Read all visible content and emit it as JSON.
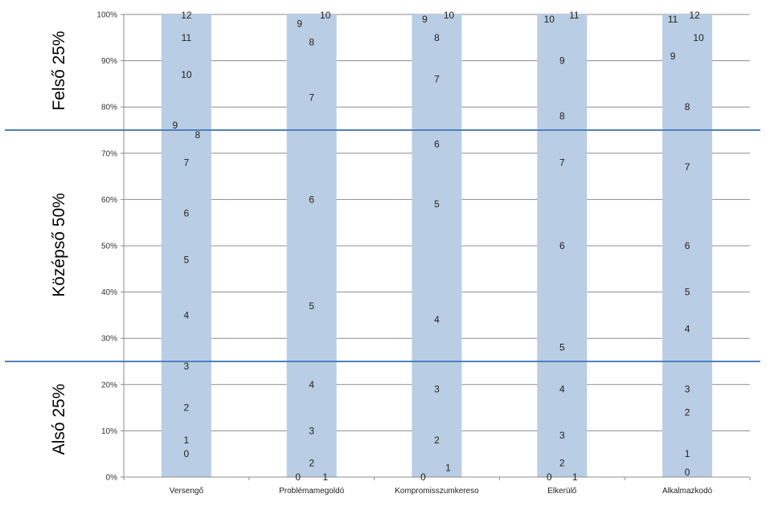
{
  "chart_data": {
    "type": "bar",
    "categories": [
      "Versengő",
      "Problémamegoldó",
      "Kompromisszumkereso",
      "Elkerülő",
      "Alkalmazkodó"
    ],
    "y_ticks": [
      "0%",
      "10%",
      "20%",
      "30%",
      "40%",
      "50%",
      "60%",
      "70%",
      "80%",
      "90%",
      "100%"
    ],
    "ylim": [
      0,
      100
    ],
    "grid": true,
    "bar_value": 100,
    "bar_color": "#b9cde4",
    "band_line_color": "#4f81bd",
    "band_lines": [
      75,
      25
    ],
    "bands": [
      {
        "label": "Felső 25%",
        "from": 75,
        "to": 100
      },
      {
        "label": "Középső 50%",
        "from": 25,
        "to": 75
      },
      {
        "label": "Alsó 25%",
        "from": 0,
        "to": 25
      }
    ],
    "score_labels": [
      [
        {
          "score": "0",
          "pct": 5
        },
        {
          "score": "1",
          "pct": 8
        },
        {
          "score": "2",
          "pct": 15
        },
        {
          "score": "3",
          "pct": 24
        },
        {
          "score": "4",
          "pct": 35
        },
        {
          "score": "5",
          "pct": 47
        },
        {
          "score": "6",
          "pct": 57
        },
        {
          "score": "7",
          "pct": 68
        },
        {
          "score": "8",
          "pct": 74
        },
        {
          "score": "9",
          "pct": 76
        },
        {
          "score": "10",
          "pct": 87
        },
        {
          "score": "11",
          "pct": 95
        },
        {
          "score": "12",
          "pct": 100
        }
      ],
      [
        {
          "score": "0",
          "pct": 0
        },
        {
          "score": "1",
          "pct": 0
        },
        {
          "score": "2",
          "pct": 3
        },
        {
          "score": "3",
          "pct": 10
        },
        {
          "score": "4",
          "pct": 20
        },
        {
          "score": "5",
          "pct": 37
        },
        {
          "score": "6",
          "pct": 60
        },
        {
          "score": "7",
          "pct": 82
        },
        {
          "score": "8",
          "pct": 94
        },
        {
          "score": "9",
          "pct": 98
        },
        {
          "score": "10",
          "pct": 100
        }
      ],
      [
        {
          "score": "0",
          "pct": 0
        },
        {
          "score": "1",
          "pct": 2
        },
        {
          "score": "2",
          "pct": 8
        },
        {
          "score": "3",
          "pct": 19
        },
        {
          "score": "4",
          "pct": 34
        },
        {
          "score": "5",
          "pct": 59
        },
        {
          "score": "6",
          "pct": 72
        },
        {
          "score": "7",
          "pct": 86
        },
        {
          "score": "8",
          "pct": 95
        },
        {
          "score": "9",
          "pct": 99
        },
        {
          "score": "10",
          "pct": 100
        }
      ],
      [
        {
          "score": "0",
          "pct": 0
        },
        {
          "score": "1",
          "pct": 0
        },
        {
          "score": "2",
          "pct": 3
        },
        {
          "score": "3",
          "pct": 9
        },
        {
          "score": "4",
          "pct": 19
        },
        {
          "score": "5",
          "pct": 28
        },
        {
          "score": "6",
          "pct": 50
        },
        {
          "score": "7",
          "pct": 68
        },
        {
          "score": "8",
          "pct": 78
        },
        {
          "score": "9",
          "pct": 90
        },
        {
          "score": "10",
          "pct": 99
        },
        {
          "score": "11",
          "pct": 100
        }
      ],
      [
        {
          "score": "0",
          "pct": 1
        },
        {
          "score": "1",
          "pct": 5
        },
        {
          "score": "2",
          "pct": 14
        },
        {
          "score": "3",
          "pct": 19
        },
        {
          "score": "4",
          "pct": 32
        },
        {
          "score": "5",
          "pct": 40
        },
        {
          "score": "6",
          "pct": 50
        },
        {
          "score": "7",
          "pct": 67
        },
        {
          "score": "8",
          "pct": 80
        },
        {
          "score": "9",
          "pct": 91
        },
        {
          "score": "10",
          "pct": 95
        },
        {
          "score": "11",
          "pct": 99
        },
        {
          "score": "12",
          "pct": 100
        }
      ]
    ]
  }
}
